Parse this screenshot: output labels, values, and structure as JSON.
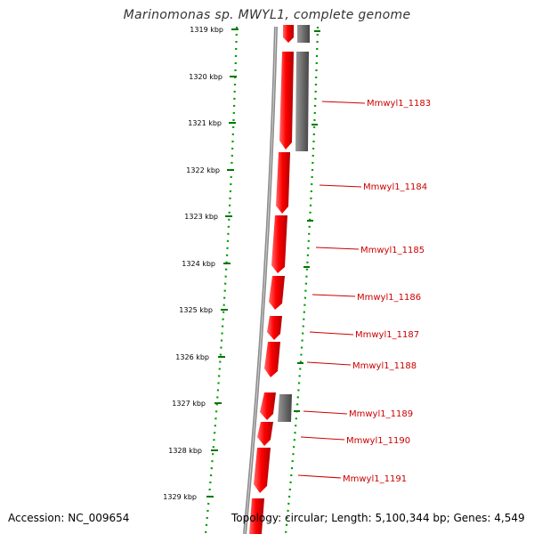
{
  "title": "Marinomonas sp. MWYL1, complete genome",
  "footer": {
    "accession": "Accession: NC_009654",
    "summary": "Topology: circular; Length: 5,100,344 bp; Genes: 4,549"
  },
  "ticks": [
    "1319 kbp",
    "1320 kbp",
    "1321 kbp",
    "1322 kbp",
    "1323 kbp",
    "1324 kbp",
    "1325 kbp",
    "1326 kbp",
    "1327 kbp",
    "1328 kbp",
    "1329 kbp"
  ],
  "genes": [
    "Mmwyl1_1183",
    "Mmwyl1_1184",
    "Mmwyl1_1185",
    "Mmwyl1_1186",
    "Mmwyl1_1187",
    "Mmwyl1_1188",
    "Mmwyl1_1189",
    "Mmwyl1_1190",
    "Mmwyl1_1191"
  ],
  "colors": {
    "forward_gene": "#ee0000",
    "reverse_gene": "#666666",
    "backbone": "#888888",
    "tick": "#007700",
    "label": "#cc0000"
  }
}
